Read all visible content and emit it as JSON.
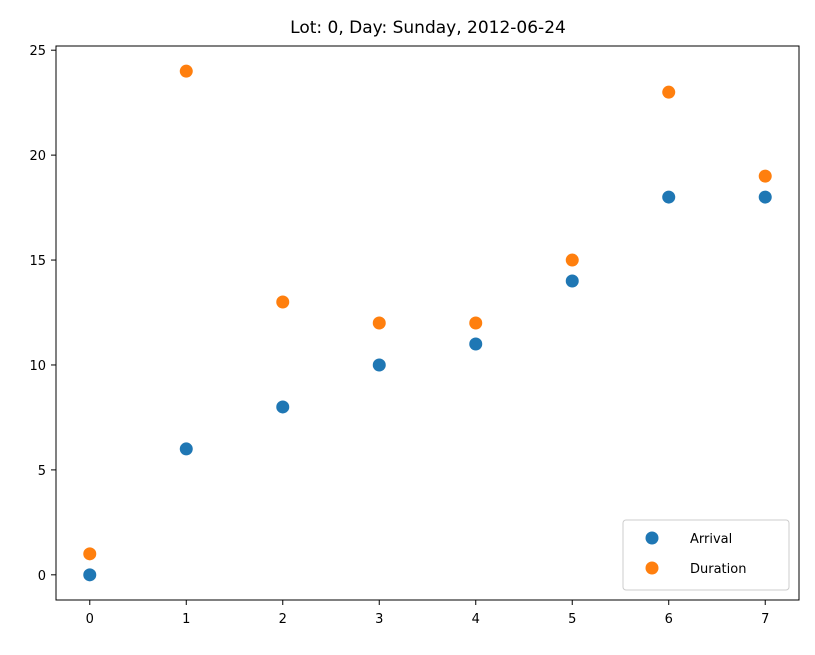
{
  "chart_data": {
    "type": "scatter",
    "title": "Lot: 0, Day: Sunday, 2012-06-24",
    "xlabel": "",
    "ylabel": "",
    "xlim": [
      -0.35,
      7.35
    ],
    "ylim": [
      -1.2,
      25.2
    ],
    "xticks": [
      0,
      1,
      2,
      3,
      4,
      5,
      6,
      7
    ],
    "yticks": [
      0,
      5,
      10,
      15,
      20,
      25
    ],
    "grid": false,
    "legend_position": "lower-right",
    "series": [
      {
        "name": "Arrival",
        "color": "#1f77b4",
        "x": [
          0,
          1,
          2,
          3,
          4,
          5,
          6,
          7
        ],
        "y": [
          0,
          6,
          8,
          10,
          11,
          14,
          18,
          18
        ]
      },
      {
        "name": "Duration",
        "color": "#ff7f0e",
        "x": [
          0,
          1,
          2,
          3,
          4,
          5,
          6,
          7
        ],
        "y": [
          1,
          24,
          13,
          12,
          12,
          15,
          23,
          19
        ]
      }
    ]
  }
}
